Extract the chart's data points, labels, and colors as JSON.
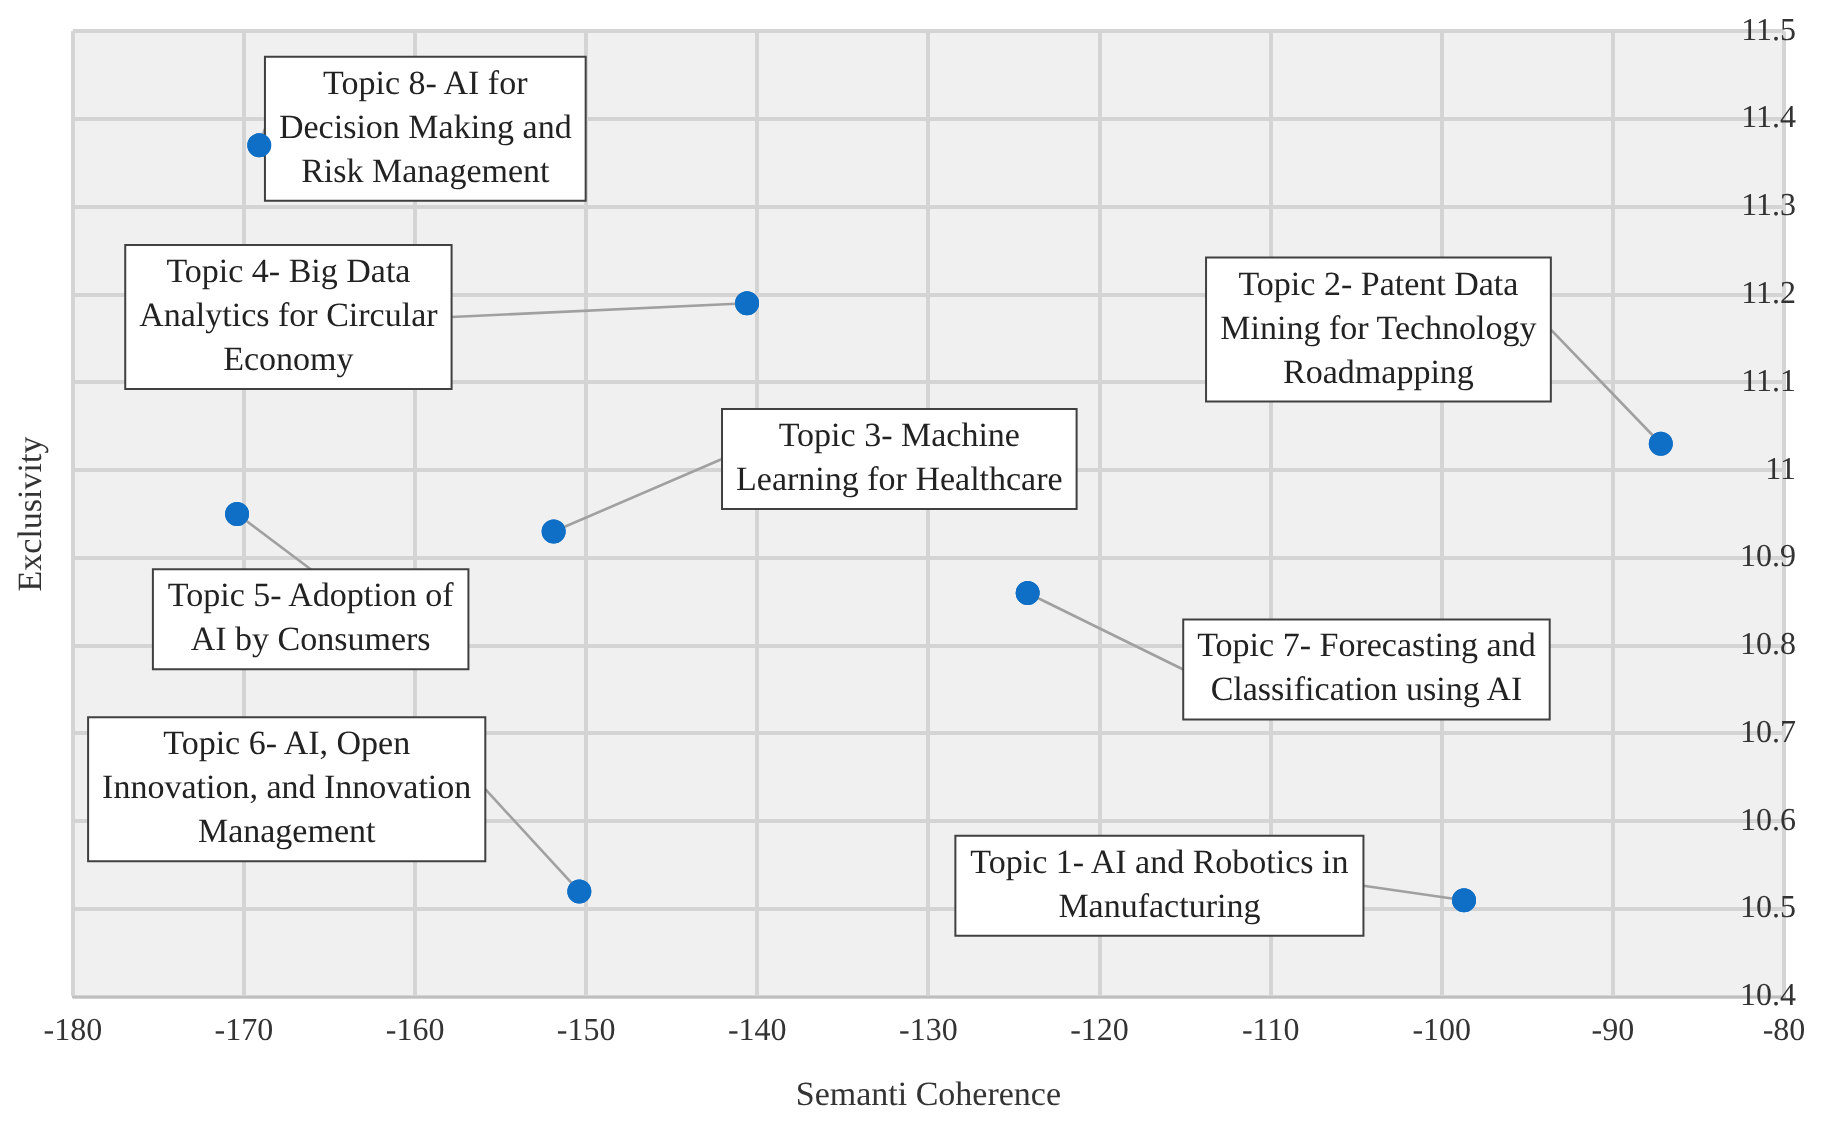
{
  "chart_data": {
    "type": "scatter",
    "xlabel": "Semanti Coherence",
    "ylabel": "Exclusivity",
    "series": [
      {
        "color": "#0f6fc6",
        "x": [
          -98.7,
          -87.2,
          -151.9,
          -140.6,
          -170.4,
          -150.4,
          -124.2,
          -169.1
        ],
        "values": [
          10.51,
          11.03,
          10.93,
          11.19,
          10.95,
          10.52,
          10.86,
          11.37
        ]
      }
    ],
    "xlim": [
      -180,
      -80
    ],
    "xticks": [
      -180,
      -170,
      -160,
      -150,
      -140,
      -130,
      -120,
      -110,
      -100,
      -90,
      -80
    ],
    "ylim": [
      10.4,
      11.5
    ],
    "yticks": [
      10.4,
      10.5,
      10.6,
      10.7,
      10.8,
      10.9,
      11,
      11.1,
      11.2,
      11.3,
      11.4,
      11.5
    ],
    "grid": true,
    "marker": "circle",
    "annotations": [
      {
        "text": "Topic 1- AI and Robotics in Manufacturing",
        "x": -98.7,
        "y": 10.51
      },
      {
        "text": "Topic 2- Patent Data Mining for Technology Roadmapping",
        "x": -87.2,
        "y": 11.03
      },
      {
        "text": "Topic 3- Machine Learning for Healthcare",
        "x": -151.9,
        "y": 10.93
      },
      {
        "text": "Topic 4- Big Data Analytics for Circular Economy",
        "x": -140.6,
        "y": 11.19
      },
      {
        "text": "Topic 5- Adoption of AI by Consumers",
        "x": -170.4,
        "y": 10.95
      },
      {
        "text": "Topic 6- AI, Open Innovation, and Innovation Management",
        "x": -150.4,
        "y": 10.52
      },
      {
        "text": "Topic 7- Forecasting and Classification using AI",
        "x": -124.2,
        "y": 10.86
      },
      {
        "text": "Topic 8- AI for Decision Making and Risk Management",
        "x": -169.1,
        "y": 11.37
      }
    ]
  }
}
